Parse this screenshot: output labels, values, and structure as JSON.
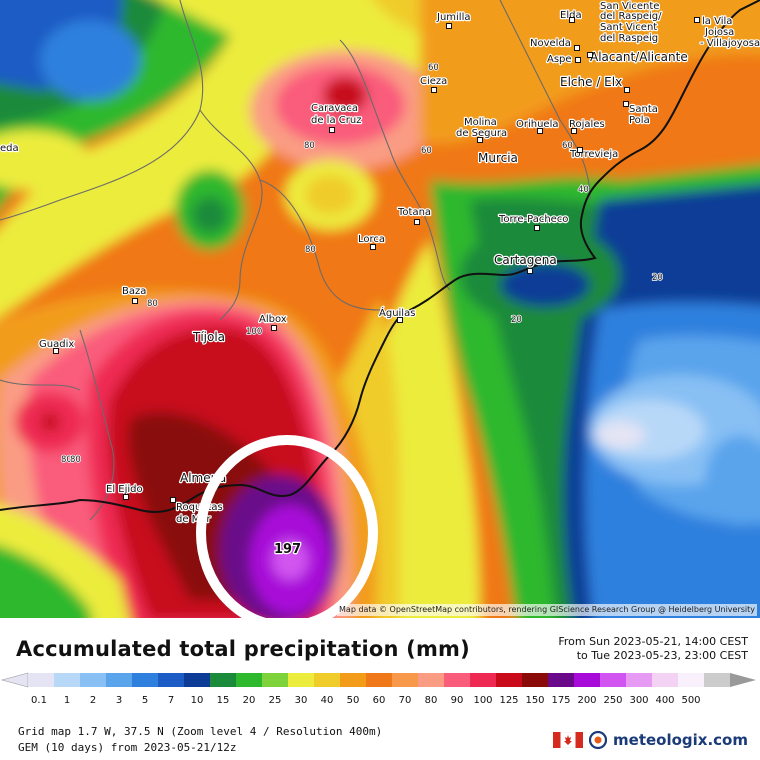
{
  "map": {
    "cities": [
      {
        "name": "Jumilla"
      },
      {
        "name": "Elda"
      },
      {
        "name": "San Vicente"
      },
      {
        "name": "del Raspeig/"
      },
      {
        "name": "Sant Vicent"
      },
      {
        "name": "del Raspeig"
      },
      {
        "name": "la Vila"
      },
      {
        "name": "Joiosa"
      },
      {
        "name": "- Villajoyosa"
      },
      {
        "name": "Novelda"
      },
      {
        "name": "Aspe"
      },
      {
        "name": "Alacant/Alicante"
      },
      {
        "name": "Cieza"
      },
      {
        "name": "Elche / Elx"
      },
      {
        "name": "Caravaca"
      },
      {
        "name": "de la Cruz"
      },
      {
        "name": "Santa"
      },
      {
        "name": "Pola"
      },
      {
        "name": "Orihuela"
      },
      {
        "name": "Rojales"
      },
      {
        "name": "Molina"
      },
      {
        "name": "de Segura"
      },
      {
        "name": "Torrevieja"
      },
      {
        "name": "Murcia"
      },
      {
        "name": "eda"
      },
      {
        "name": "Totana"
      },
      {
        "name": "Torre-Pacheco"
      },
      {
        "name": "Lorca"
      },
      {
        "name": "Cartagena"
      },
      {
        "name": "Baza"
      },
      {
        "name": "Albox"
      },
      {
        "name": "Águilas"
      },
      {
        "name": "Tíjola"
      },
      {
        "name": "Guadix"
      },
      {
        "name": "Almería"
      },
      {
        "name": "El Ejido"
      },
      {
        "name": "Roquetas"
      },
      {
        "name": "de Mar"
      }
    ],
    "contour_labels": [
      "60",
      "80",
      "60",
      "80",
      "60",
      "40",
      "80",
      "20",
      "80",
      "20",
      "100",
      "80"
    ],
    "max_value": "197",
    "attribution": "Map data © OpenStreetMap contributors, rendering GIScience Research Group @ Heidelberg University"
  },
  "header": {
    "title": "Accumulated total precipitation (mm)",
    "period_from": "From Sun 2023-05-21, 14:00 CEST",
    "period_to": "to Tue 2023-05-23, 23:00 CEST"
  },
  "legend": {
    "labels": [
      "0.1",
      "1",
      "2",
      "3",
      "5",
      "7",
      "10",
      "15",
      "20",
      "25",
      "30",
      "40",
      "50",
      "60",
      "70",
      "80",
      "90",
      "100",
      "125",
      "150",
      "175",
      "200",
      "250",
      "300",
      "400",
      "500"
    ],
    "colors": [
      "#e4e4f4",
      "#b8d8f8",
      "#88c0f4",
      "#5aa4ec",
      "#2f80de",
      "#1c5cc4",
      "#0c3c96",
      "#1b8a3a",
      "#2eb82e",
      "#7ed23a",
      "#ecec3c",
      "#f0cc2a",
      "#f29c1a",
      "#f07818",
      "#f8984a",
      "#fa9c84",
      "#fa5c7c",
      "#ee2a52",
      "#c80a1a",
      "#8a0a0a",
      "#6a0a8a",
      "#a80ad8",
      "#d254f0",
      "#e69af4",
      "#f4d2f4",
      "#f8f0fa",
      "#cccccc"
    ]
  },
  "footer": {
    "grid_info": "Grid map 1.7 W, 37.5 N (Zoom level 4 / Resolution 400m)",
    "model_info": "GEM (10 days) from 2023-05-21/12z",
    "brand": "meteologix.com"
  }
}
